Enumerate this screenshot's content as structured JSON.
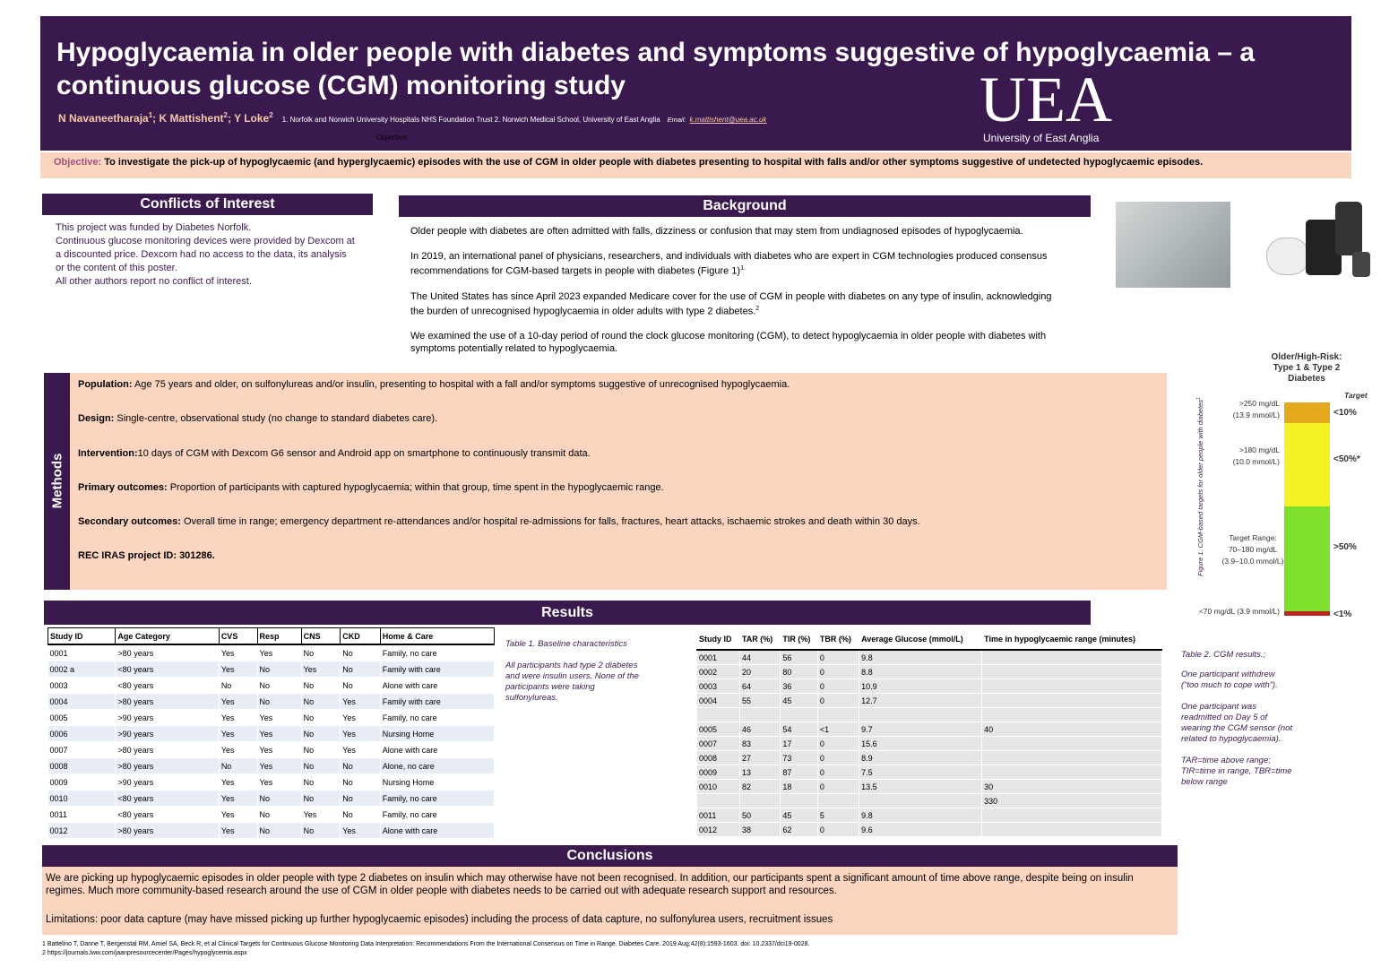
{
  "header": {
    "title": "Hypoglycaemia in older people with diabetes and symptoms suggestive of hypoglycaemia – a continuous glucose (CGM) monitoring study",
    "authors": [
      {
        "name": "N Navaneetharaja",
        "affiliation": "1"
      },
      {
        "name": "K Mattishent",
        "affiliation": "2"
      },
      {
        "name": "Y Loke",
        "affiliation": "2"
      }
    ],
    "author_separator": ";",
    "affiliations": "1. Norfolk and Norwich University Hospitals NHS Foundation Trust  2. Norwich Medical School, University of East Anglia",
    "email_label": "Email:",
    "email": "k.mattishent@uea.ac.uk",
    "stray_label": "Objective:",
    "logo_mark": "UEA",
    "logo_text": "University of East Anglia"
  },
  "objective": {
    "label": "Objective:",
    "text": "To investigate the pick-up of hypoglycaemic (and hyperglycaemic) episodes with the use of CGM in older people with diabetes presenting to hospital with falls and/or other symptoms suggestive of undetected hypoglycaemic episodes."
  },
  "conflicts": {
    "heading": "Conflicts of Interest",
    "lines": [
      "This project was funded by Diabetes Norfolk.",
      "Continuous glucose monitoring devices were provided by Dexcom at a discounted price.  Dexcom had no access to the data, its analysis or the content of this poster.",
      "All other authors report no conflict of interest."
    ]
  },
  "background": {
    "heading": "Background",
    "paragraphs": [
      {
        "text": "Older people with diabetes are often admitted with falls, dizziness or confusion that may stem from undiagnosed episodes of hypoglycaemia.",
        "sup": null
      },
      {
        "text": "In 2019, an international panel of physicians, researchers, and individuals with diabetes who are expert in CGM technologies produced consensus recommendations for CGM-based targets in people with diabetes (Figure 1)",
        "sup": "1."
      },
      {
        "text": "The United States has since April 2023 expanded Medicare cover for the use of CGM in people with diabetes  on any type of insulin, acknowledging the burden of unrecognised hypoglycaemia in older adults with type 2 diabetes.",
        "sup": "2"
      },
      {
        "text": "We examined the use of a 10-day period of round the clock glucose monitoring (CGM), to detect hypoglycaemia in older people with diabetes with symptoms potentially related to hypoglycaemia.",
        "sup": null
      }
    ]
  },
  "methods": {
    "label": "Methods",
    "items": [
      {
        "label": "Population:",
        "text": " Age 75 years and older, on sulfonylureas and/or insulin, presenting to hospital with a fall and/or symptoms suggestive of unrecognised hypoglycaemia."
      },
      {
        "label": "Design:",
        "text": " Single-centre, observational study (no change to standard diabetes care)."
      },
      {
        "label": "Intervention:",
        "text": "10 days of CGM with Dexcom G6 sensor and Android app on smartphone to continuously transmit data."
      },
      {
        "label": "Primary outcomes:",
        "text": " Proportion of participants with captured hypoglycaemia; within that group, time spent in the hypoglycaemic range."
      },
      {
        "label": "Secondary outcomes:",
        "text": " Overall time in range; emergency department re-attendances and/or hospital re-admissions for falls, fractures, heart attacks, ischaemic strokes and death within 30 days."
      },
      {
        "label": "REC IRAS project ID: 301286.",
        "text": null
      }
    ]
  },
  "figure": {
    "caption": "Figure 1. CGM-based targets for older people with diabetes",
    "caption_sup": "1",
    "title": "Older/High-Risk: Type 1 & Type 2 Diabetes",
    "target_heading": "Target",
    "bands": [
      {
        "label": ">250 mg/dL (13.9 mmol/L)",
        "target": "<10%",
        "color": "#e3a81c"
      },
      {
        "label": ">180 mg/dL (10.0 mmol/L)",
        "target": "<50%*",
        "color": "#f3f324"
      },
      {
        "label": "Target Range: 70–180 mg/dL (3.9–10.0 mmol/L)",
        "target": ">50%",
        "color": "#7ee02c"
      },
      {
        "label": "<70 mg/dL (3.9 mmol/L)",
        "target": "<1%",
        "color": "#b8261e"
      }
    ]
  },
  "results": {
    "heading": "Results"
  },
  "table1": {
    "header": [
      "Study ID",
      "Age Category",
      "CVS",
      "Resp",
      "CNS",
      "CKD",
      "Home & Care"
    ],
    "rows": [
      [
        "0001",
        ">80 years",
        "Yes",
        "Yes",
        "No",
        "No",
        "Family, no care"
      ],
      [
        "0002 a",
        "<80 years",
        "Yes",
        "No",
        "Yes",
        "No",
        "Family with care"
      ],
      [
        "0003",
        "<80 years",
        "No",
        "No",
        "No",
        "No",
        "Alone with care"
      ],
      [
        "0004",
        ">80 years",
        "Yes",
        "No",
        "No",
        "Yes",
        "Family with care"
      ],
      [
        "0005",
        ">90 years",
        "Yes",
        "Yes",
        "No",
        "Yes",
        "Family, no care"
      ],
      [
        "0006",
        ">90 years",
        "Yes",
        "Yes",
        "No",
        "Yes",
        "Nursing Home"
      ],
      [
        "0007",
        ">80 years",
        "Yes",
        "Yes",
        "No",
        "Yes",
        "Alone with care"
      ],
      [
        "0008",
        ">80 years",
        "No",
        "Yes",
        "No",
        "No",
        "Alone, no care"
      ],
      [
        "0009",
        ">90 years",
        "Yes",
        "Yes",
        "No",
        "No",
        "Nursing Home"
      ],
      [
        "0010",
        "<80 years",
        "Yes",
        "No",
        "No",
        "No",
        "Family, no care"
      ],
      [
        "0011",
        "<80 years",
        "Yes",
        "No",
        "Yes",
        "No",
        "Family, no care"
      ],
      [
        "0012",
        ">80 years",
        "Yes",
        "No",
        "No",
        "Yes",
        "Alone with care"
      ]
    ],
    "caption": "Table 1. Baseline characteristics",
    "note": "All  participants had type 2 diabetes and were insulin users. None of the participants were taking sulfonylureas."
  },
  "table2": {
    "header": [
      "Study ID",
      "TAR (%)",
      "TIR (%)",
      "TBR (%)",
      "Average Glucose (mmol/L)",
      "Time in hypoglycaemic range (minutes)"
    ],
    "rows": [
      [
        "0001",
        "44",
        "56",
        "0",
        "9.8",
        null
      ],
      [
        "0002",
        "20",
        "80",
        "0",
        "8.8",
        null
      ],
      [
        "0003",
        "64",
        "36",
        "0",
        "10.9",
        null
      ],
      [
        "0004",
        "55",
        "45",
        "0",
        "12.7",
        null
      ],
      [
        null,
        null,
        null,
        null,
        null,
        null
      ],
      [
        "0005",
        "46",
        "54",
        "<1",
        "9.7",
        "40"
      ],
      [
        "0007",
        "83",
        "17",
        "0",
        "15.6",
        null
      ],
      [
        "0008",
        "27",
        "73",
        "0",
        "8.9",
        null
      ],
      [
        "0009",
        "13",
        "87",
        "0",
        "7.5",
        null
      ],
      [
        "0010",
        "82",
        "18",
        "0",
        "13.5",
        "30"
      ],
      [
        null,
        null,
        null,
        null,
        null,
        "330"
      ],
      [
        "0011",
        "50",
        "45",
        "5",
        "9.8",
        null
      ],
      [
        "0012",
        "38",
        "62",
        "0",
        "9.6",
        null
      ]
    ],
    "caption": "Table 2. CGM results.;",
    "notes": [
      "One participant withdrew (“too much to cope with”).",
      "One participant was readmitted on Day 5 of wearing the CGM sensor (not related to hypoglycaemia).",
      "TAR=time above range; TIR=time in range, TBR=time below range"
    ]
  },
  "conclusions": {
    "heading": "Conclusions",
    "paragraphs": [
      "We are picking up hypoglycaemic episodes in older people with type 2 diabetes on insulin which may otherwise have not been recognised.  In addition, our participants spent a significant amount of time above range, despite being on insulin regimes. Much more community-based research around the use of CGM in older people with diabetes needs to be carried out with adequate research support and resources.",
      "Limitations: poor data capture (may have missed picking up further hypoglycaemic episodes) including the process of data capture, no sulfonylurea users, recruitment issues"
    ]
  },
  "references": [
    "1 Battelino T, Danne T, Bergenstal RM, Amiel SA, Beck R, et al Clinical Targets for Continuous Glucose Monitoring Data Interpretation: Recommendations From the International Consensus on Time in Range. Diabetes Care. 2019 Aug;42(8):1593-1603. doi: 10.2337/dci19-0028.",
    "2 https://journals.lww.com/jaanpresourcecenter/Pages/hypoglycemia.aspx"
  ]
}
